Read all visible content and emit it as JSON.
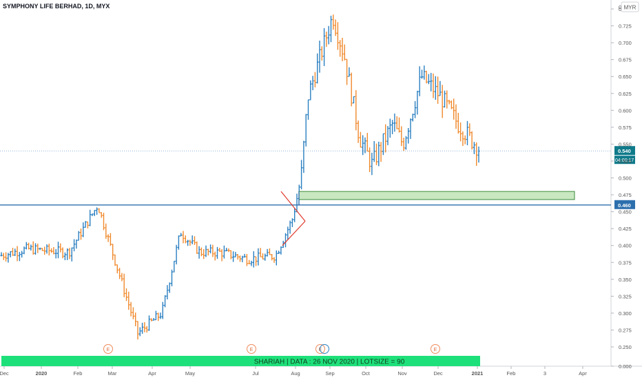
{
  "chart_title": "SYMPHONY LIFE BERHAD, 1D, MYX",
  "currency": "MYR",
  "price_axis": {
    "ticks": [
      "0.000",
      "0.250",
      "0.275",
      "0.300",
      "0.325",
      "0.350",
      "0.375",
      "0.400",
      "0.425",
      "0.450",
      "0.475",
      "0.500",
      "0.525",
      "0.550",
      "0.575",
      "0.600",
      "0.625",
      "0.650",
      "0.675",
      "0.700",
      "0.725",
      "0.750"
    ],
    "top_partial_label": "0"
  },
  "time_axis": {
    "ticks": [
      "Dec",
      "2020",
      "Feb",
      "Mar",
      "Apr",
      "May",
      "Jul",
      "Aug",
      "Sep",
      "Oct",
      "Nov",
      "Dec",
      "2021",
      "Feb",
      "3",
      "Apr"
    ]
  },
  "last_price": {
    "value": "0.540",
    "countdown": "04:00:17",
    "color": "#0f7a8a"
  },
  "resistance_label": "0.460",
  "earnings_markers": [
    "E",
    "E",
    "E",
    "E"
  ],
  "banner_text": "SHARIAH   |   DATA : 26 NOV 2020   |   LOTSIZE = 90",
  "colors": {
    "up": "#2a7fc0",
    "down": "#f0892c",
    "line": "#2c6fad",
    "zone_fill": "#c9e8c2",
    "zone_stroke": "#3a8a3a",
    "banner": "#1ee07a",
    "triangle": "#e0392b"
  },
  "chart_data": {
    "type": "ohlc",
    "title": "SYMPHONY LIFE BERHAD, 1D, MYX",
    "y_range": [
      0.26,
      0.76
    ],
    "resistance_level": 0.46,
    "demand_zone": [
      0.468,
      0.48
    ],
    "last_close": 0.54,
    "approx_close_path": [
      [
        "Dec 2019",
        0.385
      ],
      [
        "2020 Jan",
        0.395
      ],
      [
        "Feb",
        0.39
      ],
      [
        "Mar (high)",
        0.46
      ],
      [
        "Mar",
        0.4
      ],
      [
        "Apr (low)",
        0.27
      ],
      [
        "Apr",
        0.3
      ],
      [
        "May",
        0.42
      ],
      [
        "May",
        0.39
      ],
      [
        "Jun",
        0.39
      ],
      [
        "Jul",
        0.38
      ],
      [
        "Jul",
        0.385
      ],
      [
        "Aug",
        0.44
      ],
      [
        "Aug",
        0.5
      ],
      [
        "Aug",
        0.62
      ],
      [
        "Sep (high)",
        0.74
      ],
      [
        "Sep",
        0.68
      ],
      [
        "Oct",
        0.56
      ],
      [
        "Oct (low)",
        0.52
      ],
      [
        "Nov",
        0.58
      ],
      [
        "Nov",
        0.55
      ],
      [
        "Dec (high)",
        0.65
      ],
      [
        "Dec",
        0.62
      ],
      [
        "Dec",
        0.58
      ],
      [
        "2021",
        0.54
      ]
    ]
  }
}
